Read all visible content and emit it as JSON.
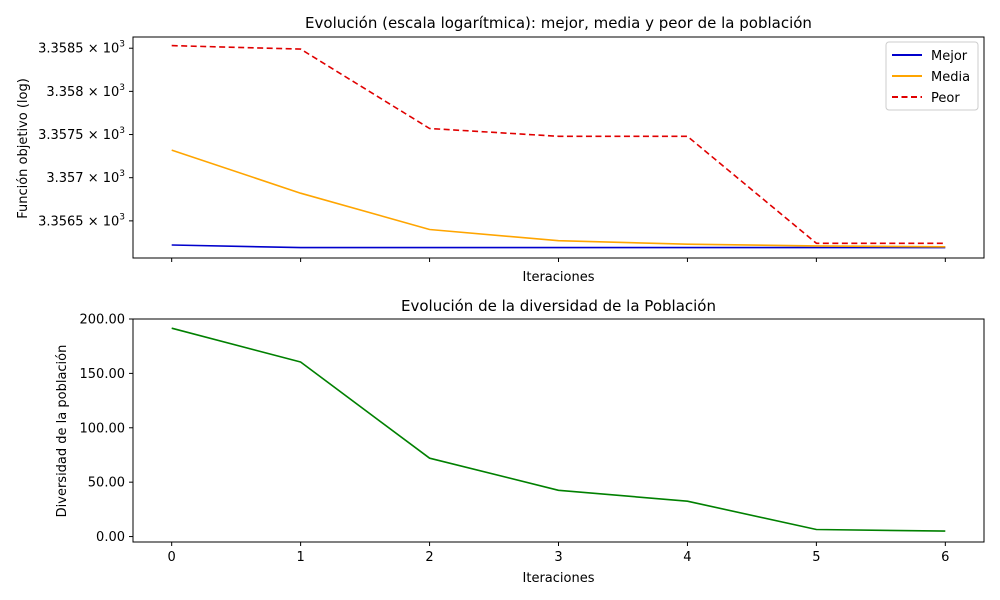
{
  "chart_data": [
    {
      "type": "line",
      "title": "Evolución (escala logarítmica): mejor, media y peor de la población",
      "xlabel": "Iteraciones",
      "ylabel": "Función objetivo (log)",
      "yscale": "log",
      "x": [
        0,
        1,
        2,
        3,
        4,
        5,
        6
      ],
      "xlim": [
        -0.3,
        6.3
      ],
      "ylim": [
        3356.07,
        3358.63
      ],
      "xticks": [
        0,
        1,
        2,
        3,
        4,
        5,
        6
      ],
      "xtick_labels_shown": false,
      "yticks": [
        3356.5,
        3357.0,
        3357.5,
        3358.0,
        3358.5
      ],
      "ytick_labels": [
        "3.3565",
        "3.357",
        "3.3575",
        "3.358",
        "3.3585"
      ],
      "ytick_suffix": "× 10",
      "ytick_exponent": "3",
      "legend_position": "top-right",
      "series": [
        {
          "name": "Mejor",
          "color": "#0000cc",
          "style": "solid",
          "values": [
            3356.22,
            3356.19,
            3356.19,
            3356.19,
            3356.19,
            3356.19,
            3356.19
          ]
        },
        {
          "name": "Media",
          "color": "#ffa500",
          "style": "solid",
          "values": [
            3357.32,
            3356.82,
            3356.4,
            3356.27,
            3356.23,
            3356.21,
            3356.2
          ]
        },
        {
          "name": "Peor",
          "color": "#e00000",
          "style": "dashed",
          "values": [
            3358.53,
            3358.49,
            3357.57,
            3357.48,
            3357.48,
            3356.24,
            3356.24
          ]
        }
      ]
    },
    {
      "type": "line",
      "title": "Evolución de la diversidad de la Población",
      "xlabel": "Iteraciones",
      "ylabel": "Diversidad de la población",
      "x": [
        0,
        1,
        2,
        3,
        4,
        5,
        6
      ],
      "xlim": [
        -0.3,
        6.3
      ],
      "ylim": [
        -5,
        200
      ],
      "xticks": [
        0,
        1,
        2,
        3,
        4,
        5,
        6
      ],
      "xtick_labels": [
        "0",
        "1",
        "2",
        "3",
        "4",
        "5",
        "6"
      ],
      "yticks": [
        0,
        50,
        100,
        150,
        200
      ],
      "ytick_labels": [
        "0.00",
        "50.00",
        "100.00",
        "150.00",
        "200.00"
      ],
      "series": [
        {
          "color": "#008000",
          "style": "solid",
          "values": [
            191.5,
            160.5,
            72.0,
            42.5,
            32.5,
            6.5,
            5.0
          ]
        }
      ]
    }
  ]
}
